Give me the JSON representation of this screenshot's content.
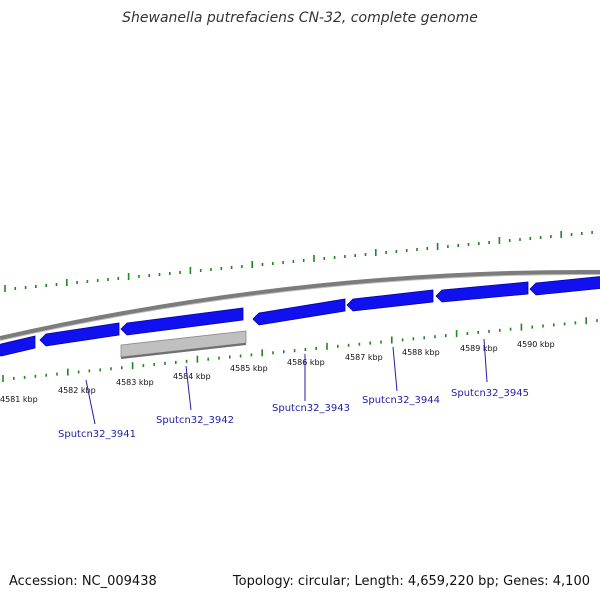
{
  "title": "Shewanella putrefaciens CN-32, complete genome",
  "footer": {
    "accession": "Accession: NC_009438",
    "topology": "Topology: circular; Length: 4,659,220 bp; Genes: 4,100"
  },
  "colors": {
    "gene_fill": "#1010f0",
    "gene_highlight": "#c0c0c0",
    "backbone": "#808080",
    "tick": "#1a8a1a",
    "gene_label": "#1f1fa6"
  },
  "kbp_labels": [
    "4581 kbp",
    "4582 kbp",
    "4583 kbp",
    "4584 kbp",
    "4585 kbp",
    "4586 kbp",
    "4587 kbp",
    "4588 kbp",
    "4589 kbp",
    "4590 kbp"
  ],
  "gene_labels": [
    "Sputcn32_3941",
    "Sputcn32_3942",
    "Sputcn32_3943",
    "Sputcn32_3944",
    "Sputcn32_3945"
  ]
}
